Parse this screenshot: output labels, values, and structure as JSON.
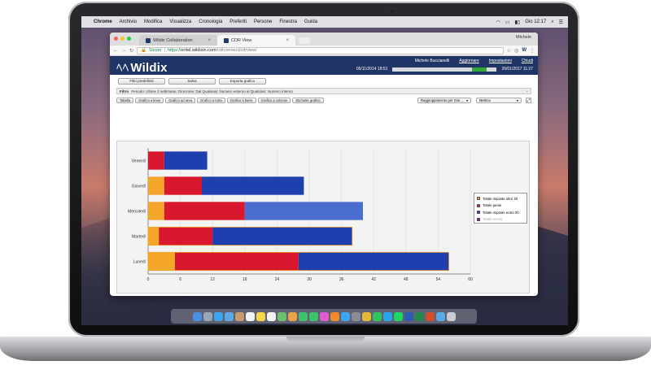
{
  "menubar": {
    "apple": "",
    "app": "Chrome",
    "items": [
      "Archivio",
      "Modifica",
      "Visualizza",
      "Cronologia",
      "Preferiti",
      "Persone",
      "Finestra",
      "Guida"
    ],
    "clock": "Gio 12:17"
  },
  "browser": {
    "user": "Michele",
    "tabs": [
      {
        "label": "Wildix Collaboration",
        "active": false
      },
      {
        "label": "CDR View",
        "active": true
      }
    ],
    "address": {
      "secure_label": "Sicuro",
      "proto": "https://",
      "host": "eritel.wildixin.com",
      "path": "/cdrconnect/cdrview/"
    }
  },
  "app": {
    "logo": "Wildix",
    "user_name": "Michele Buccianelli",
    "links": [
      "Aggiornare",
      "Impostazioni",
      "Chiudi"
    ],
    "date_from": "05/11/2014 18:51",
    "date_to": "26/01/2017 11:27",
    "actions": [
      "Filtri predefiniti",
      "Salva",
      "Esporta grafico"
    ],
    "filter_label": "Filtro",
    "filter_text": "Periodo: Ultime 2 settimane; Direzione: Dal Qualsiasi: Numero esterno al Qualsiasi: Numero interno",
    "view_buttons": [
      "Tabella",
      "Grafico a linee",
      "Grafico ad area",
      "Grafico a torta",
      "Grafico a barre",
      "Grafico a colonne",
      "Etichette grafico"
    ],
    "grouping_select": "Raggruppamento per Gior...",
    "metric_select": "Metrica",
    "colors": {
      "header": "#1f3566",
      "orange": "#f4a62a",
      "red": "#d9182d",
      "blue": "#1f3fae",
      "blue_highlight": "#4a6ed0",
      "purple": "#7a1670"
    }
  },
  "chart_data": {
    "type": "bar",
    "orientation": "horizontal",
    "stacked": true,
    "categories": [
      "Venerdì",
      "Giovedì",
      "Mercoledì",
      "Martedì",
      "Lunedì"
    ],
    "series": [
      {
        "name": "Totale risposte oltre 20",
        "color": "#f4a62a",
        "values": [
          0,
          3,
          3,
          2,
          5
        ]
      },
      {
        "name": "Totale perse",
        "color": "#d9182d",
        "values": [
          3,
          7,
          15,
          10,
          23
        ]
      },
      {
        "name": "Totale risposte entro 20",
        "color": "#1f3fae",
        "values": [
          8,
          19,
          22,
          26,
          28
        ]
      },
      {
        "name": "Totale eventi",
        "color": "#7a1670",
        "values": [
          0,
          0,
          0,
          0,
          0
        ]
      }
    ],
    "hidden_series": [
      "Totale eventi"
    ],
    "highlighted": {
      "category": "Mercoledì",
      "series": "Totale risposte entro 20"
    },
    "xlim": [
      0,
      60
    ],
    "xticks": [
      0,
      6,
      12,
      18,
      24,
      30,
      36,
      42,
      48,
      54,
      60
    ],
    "grid": true,
    "legend": "right"
  },
  "dock": {
    "icons": [
      "finder-icon",
      "launchpad-icon",
      "safari-icon",
      "mail-icon",
      "contacts-icon",
      "calendar-icon",
      "notes-icon",
      "reminders-icon",
      "maps-icon",
      "photos-icon",
      "messages-icon",
      "facetime-icon",
      "itunes-icon",
      "ibooks-icon",
      "appstore-icon",
      "preferences-icon",
      "chrome-icon",
      "whatsapp-icon",
      "skype-icon",
      "spotify-icon",
      "word-icon",
      "excel-icon",
      "powerpoint-icon",
      "folder-icon",
      "trash-icon"
    ]
  }
}
